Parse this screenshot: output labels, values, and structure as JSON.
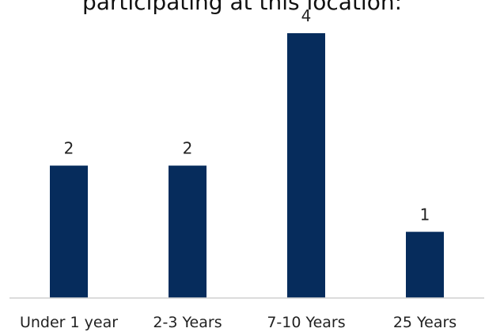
{
  "chart_data": {
    "type": "bar",
    "title": "participating at this location:",
    "categories": [
      "Under 1 year",
      "2-3 Years",
      "7-10 Years",
      "25 Years"
    ],
    "values": [
      2,
      2,
      4,
      1
    ],
    "data_labels": [
      "2",
      "2",
      "4",
      "1"
    ],
    "xlabel": "",
    "ylabel": "",
    "ylim": [
      0,
      4
    ],
    "grid": false,
    "legend": "none",
    "bar_color": "#062c5c",
    "axis_color": "#d0d0d0"
  }
}
